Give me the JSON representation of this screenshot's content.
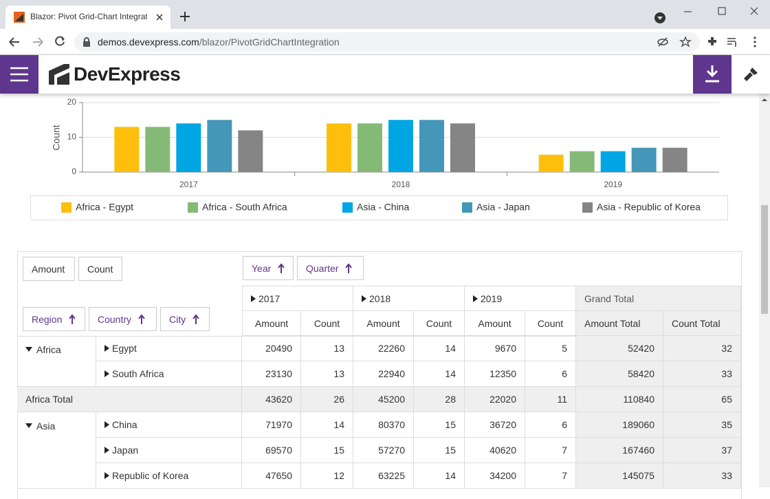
{
  "browser": {
    "tab_title": "Blazor: Pivot Grid-Chart Integration",
    "url_host": "demos.devexpress.com",
    "url_path": "/blazor/PivotGridChartIntegration"
  },
  "header": {
    "logo": "DevExpress"
  },
  "chart_data": {
    "type": "bar",
    "y_label": "Count",
    "categories": [
      "2017",
      "2018",
      "2019"
    ],
    "series": [
      {
        "name": "Africa - Egypt",
        "color": "#fdbf0b",
        "values": [
          13,
          14,
          5
        ]
      },
      {
        "name": "Africa - South Africa",
        "color": "#84ba76",
        "values": [
          13,
          14,
          6
        ]
      },
      {
        "name": "Asia - China",
        "color": "#00a6e4",
        "values": [
          14,
          15,
          6
        ]
      },
      {
        "name": "Asia - Japan",
        "color": "#4497b8",
        "values": [
          15,
          15,
          7
        ]
      },
      {
        "name": "Asia - Republic of Korea",
        "color": "#858585",
        "values": [
          12,
          14,
          7
        ]
      }
    ],
    "ylim": [
      0,
      20
    ],
    "yticks": [
      0,
      10,
      20
    ],
    "grid": true,
    "legend": "bottom"
  },
  "pivot": {
    "data_fields": [
      "Amount",
      "Count"
    ],
    "column_fields": [
      "Year",
      "Quarter"
    ],
    "row_fields": [
      "Region",
      "Country",
      "City"
    ],
    "years": [
      "2017",
      "2018",
      "2019"
    ],
    "grand_total": "Grand Total",
    "measures": [
      "Amount",
      "Count",
      "Amount",
      "Count",
      "Amount",
      "Count",
      "Amount Total",
      "Count Total"
    ],
    "groups": [
      {
        "name": "Africa",
        "rows": [
          {
            "name": "Egypt",
            "values": [
              20490,
              13,
              22260,
              14,
              9670,
              5,
              52420,
              32
            ]
          },
          {
            "name": "South Africa",
            "values": [
              23130,
              13,
              22940,
              14,
              12350,
              6,
              58420,
              33
            ]
          }
        ],
        "total": {
          "label": "Africa Total",
          "values": [
            43620,
            26,
            45200,
            28,
            22020,
            11,
            110840,
            65
          ]
        }
      },
      {
        "name": "Asia",
        "rows": [
          {
            "name": "China",
            "values": [
              71970,
              14,
              80370,
              15,
              36720,
              6,
              189060,
              35
            ]
          },
          {
            "name": "Japan",
            "values": [
              69570,
              15,
              57270,
              15,
              40620,
              7,
              167460,
              37
            ]
          },
          {
            "name": "Republic of Korea",
            "values": [
              47650,
              12,
              63225,
              14,
              34200,
              7,
              145075,
              33
            ]
          }
        ]
      }
    ]
  }
}
